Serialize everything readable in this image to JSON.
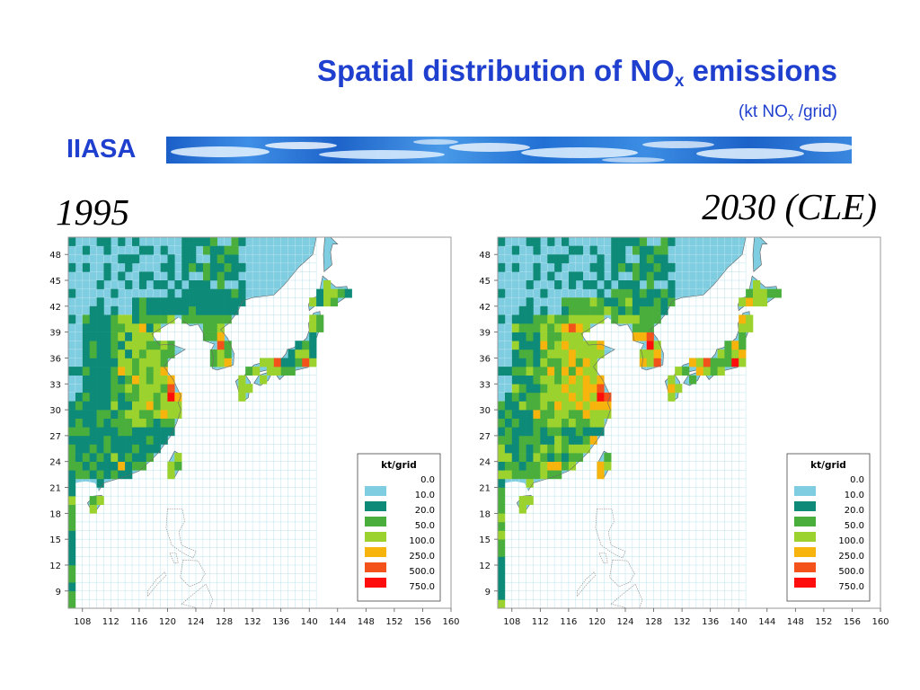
{
  "slide": {
    "title_main": "Spatial distribution of NO",
    "title_sub": "x",
    "title_end": " emissions",
    "subtitle_start": "(kt NO",
    "subtitle_sub": "x",
    "subtitle_end": " /grid)",
    "org": "IIASA"
  },
  "colors": {
    "title": "#1f3fcf",
    "sea": "#7fcde0",
    "legend": [
      "#7fcde0",
      "#0e8a79",
      "#4aae3c",
      "#9cd22d",
      "#f6b40d",
      "#f3521b",
      "#ff0d0d"
    ]
  },
  "chart_data": [
    {
      "type": "heatmap",
      "title": "1995",
      "legend_title": "kt/grid",
      "legend_values": [
        "0.0",
        "10.0",
        "20.0",
        "50.0",
        "100.0",
        "250.0",
        "500.0",
        "750.0"
      ],
      "x_ticks": [
        "108",
        "112",
        "116",
        "120",
        "124",
        "128",
        "132",
        "136",
        "140",
        "144",
        "148",
        "152",
        "156",
        "160"
      ],
      "y_ticks": [
        "48",
        "45",
        "42",
        "39",
        "36",
        "33",
        "30",
        "27",
        "24",
        "21",
        "18",
        "15",
        "12",
        "9"
      ],
      "xlim": [
        106,
        160
      ],
      "ylim": [
        7,
        50
      ],
      "grid_cell_deg": 1
    },
    {
      "type": "heatmap",
      "title": "2030 (CLE)",
      "legend_title": "kt/grid",
      "legend_values": [
        "0.0",
        "10.0",
        "20.0",
        "50.0",
        "100.0",
        "250.0",
        "500.0",
        "750.0"
      ],
      "x_ticks": [
        "108",
        "112",
        "116",
        "120",
        "124",
        "128",
        "132",
        "136",
        "140",
        "144",
        "148",
        "152",
        "156",
        "160"
      ],
      "y_ticks": [
        "48",
        "45",
        "42",
        "39",
        "36",
        "33",
        "30",
        "27",
        "24",
        "21",
        "18",
        "15",
        "12",
        "9"
      ],
      "xlim": [
        106,
        160
      ],
      "ylim": [
        7,
        50
      ],
      "grid_cell_deg": 1
    }
  ]
}
